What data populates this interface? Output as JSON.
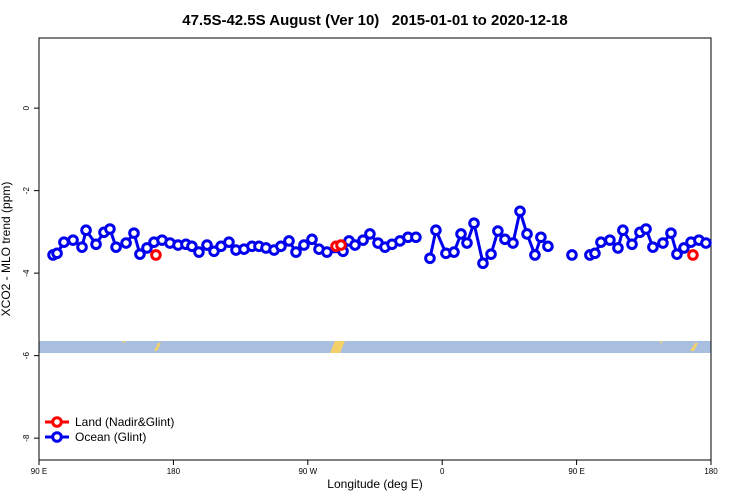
{
  "chart_data": {
    "type": "line",
    "title": "47.5S-42.5S August (Ver 10)   2015-01-01 to 2020-12-18",
    "x_label": "Longitude (deg E)",
    "y_label": "XCO2 - MLO trend (ppm)",
    "xlim": [
      90,
      540
    ],
    "xticks": [
      {
        "value": 90,
        "label": "90 E"
      },
      {
        "value": 180,
        "label": "180"
      },
      {
        "value": 270,
        "label": "90 W"
      },
      {
        "value": 360,
        "label": "0"
      },
      {
        "value": 450,
        "label": "90 E"
      },
      {
        "value": 540,
        "label": "180"
      }
    ],
    "ylim": [
      -8.53,
      1.7
    ],
    "yticks": [
      0,
      -2,
      -4,
      -6,
      -8
    ],
    "grid": false,
    "legend": "bottom-left",
    "series": [
      {
        "name": "Land (Nadir&Glint)",
        "color": "#ff0000",
        "x": [
          168.3,
          null,
          288.9,
          292.2,
          null,
          527.9
        ],
        "values": [
          -3.56,
          null,
          -3.35,
          -3.32,
          null,
          -3.56
        ]
      },
      {
        "name": "Ocean (Glint)",
        "color": "#0000ee",
        "x": [
          99.4,
          102.1,
          106.7,
          112.8,
          118.8,
          121.5,
          128.2,
          133.5,
          137.5,
          141.6,
          148.3,
          153.6,
          157.6,
          162.3,
          167.0,
          172.4,
          177.7,
          183.1,
          188.4,
          192.4,
          197.1,
          202.5,
          207.2,
          211.9,
          217.2,
          221.9,
          227.3,
          232.6,
          237.3,
          242.0,
          247.4,
          252.0,
          257.4,
          262.1,
          267.4,
          272.8,
          277.5,
          282.8,
          293.6,
          297.6,
          301.6,
          307.0,
          311.6,
          317.0,
          321.7,
          326.4,
          331.7,
          337.1,
          342.4,
          null,
          351.8,
          355.8,
          362.5,
          367.9,
          372.6,
          376.6,
          381.3,
          387.3,
          392.7,
          397.3,
          402.0,
          407.4,
          412.1,
          416.8,
          422.1,
          426.1,
          430.8,
          null,
          446.9,
          null,
          458.9,
          462.3,
          466.3,
          472.3,
          477.7,
          481.0,
          487.1,
          492.4,
          496.5,
          501.1,
          507.8,
          513.2,
          517.2,
          521.9,
          526.6,
          531.9,
          536.6
        ],
        "values": [
          -3.56,
          -3.52,
          -3.25,
          -3.2,
          -3.37,
          -2.96,
          -3.3,
          -3.01,
          -2.93,
          -3.37,
          -3.27,
          -3.03,
          -3.54,
          -3.39,
          -3.25,
          -3.2,
          -3.27,
          -3.32,
          -3.3,
          -3.35,
          -3.49,
          -3.32,
          -3.47,
          -3.35,
          -3.25,
          -3.44,
          -3.42,
          -3.35,
          -3.35,
          -3.39,
          -3.44,
          -3.35,
          -3.22,
          -3.49,
          -3.32,
          -3.18,
          -3.42,
          -3.49,
          -3.47,
          -3.22,
          -3.32,
          -3.2,
          -3.05,
          -3.27,
          -3.37,
          -3.3,
          -3.22,
          -3.13,
          -3.13,
          null,
          -3.64,
          -2.96,
          -3.52,
          -3.49,
          -3.05,
          -3.27,
          -2.79,
          -3.76,
          -3.54,
          -2.98,
          -3.18,
          -3.27,
          -2.5,
          -3.05,
          -3.56,
          -3.13,
          -3.35,
          null,
          -3.56,
          null,
          -3.56,
          -3.52,
          -3.25,
          -3.2,
          -3.39,
          -2.96,
          -3.3,
          -3.01,
          -2.93,
          -3.37,
          -3.27,
          -3.03,
          -3.54,
          -3.39,
          -3.25,
          -3.2,
          -3.27
        ]
      }
    ]
  }
}
